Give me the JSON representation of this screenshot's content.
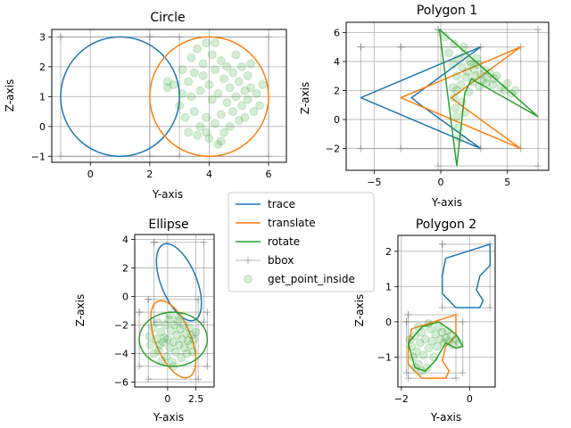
{
  "colors": {
    "trace": "#1f77b4",
    "translate": "#ff7f0e",
    "rotate": "#2ca02c",
    "bbox": "#7f7f7f",
    "points": "#2ca02c"
  },
  "legend": {
    "placement": "center",
    "entries": [
      {
        "label": "trace",
        "kind": "line",
        "color": "#1f77b4"
      },
      {
        "label": "translate",
        "kind": "line",
        "color": "#ff7f0e"
      },
      {
        "label": "rotate",
        "kind": "line",
        "color": "#2ca02c"
      },
      {
        "label": "bbox",
        "kind": "line-marker",
        "color": "#7f7f7f"
      },
      {
        "label": "get_point_inside",
        "kind": "point",
        "color": "#2ca02c"
      }
    ]
  },
  "chart_data": [
    {
      "type": "line",
      "title": "Circle",
      "xlabel": "Y-axis",
      "ylabel": "Z-axis",
      "xlim": [
        -1.3,
        6.6
      ],
      "ylim": [
        -1.2,
        3.25
      ],
      "xticks": [
        0,
        2,
        4,
        6
      ],
      "yticks": [
        -1,
        0,
        1,
        2,
        3
      ],
      "grid": true,
      "series": [
        {
          "name": "trace",
          "shape": "circle",
          "cx": 1,
          "cy": 1,
          "r": 2
        },
        {
          "name": "translate",
          "shape": "circle",
          "cx": 4,
          "cy": 1,
          "r": 2
        }
      ],
      "bbox": [
        [
          [
            -1,
            3
          ],
          [
            3,
            3
          ],
          [
            3,
            -1
          ],
          [
            -1,
            -1
          ],
          [
            -1,
            3
          ]
        ],
        [
          [
            2,
            3
          ],
          [
            6,
            3
          ],
          [
            6,
            -1
          ],
          [
            2,
            -1
          ],
          [
            2,
            3
          ]
        ]
      ],
      "points": [
        [
          2.8,
          1.4
        ],
        [
          3.0,
          0.7
        ],
        [
          3.1,
          1.9
        ],
        [
          3.2,
          0.3
        ],
        [
          3.3,
          1.5
        ],
        [
          3.3,
          -0.2
        ],
        [
          3.4,
          2.3
        ],
        [
          3.4,
          1.0
        ],
        [
          3.5,
          0.5
        ],
        [
          3.5,
          1.8
        ],
        [
          3.6,
          -0.3
        ],
        [
          3.6,
          2.6
        ],
        [
          3.7,
          1.2
        ],
        [
          3.7,
          0.0
        ],
        [
          3.8,
          1.7
        ],
        [
          3.8,
          2.1
        ],
        [
          3.9,
          0.3
        ],
        [
          3.9,
          2.8
        ],
        [
          4.0,
          1.4
        ],
        [
          4.0,
          -0.4
        ],
        [
          4.1,
          0.9
        ],
        [
          4.1,
          2.4
        ],
        [
          4.2,
          0.1
        ],
        [
          4.2,
          1.9
        ],
        [
          4.3,
          -0.6
        ],
        [
          4.3,
          1.1
        ],
        [
          4.4,
          2.2
        ],
        [
          4.4,
          0.4
        ],
        [
          4.5,
          1.6
        ],
        [
          4.5,
          -0.2
        ],
        [
          4.6,
          0.8
        ],
        [
          4.6,
          2.0
        ],
        [
          4.7,
          1.3
        ],
        [
          4.7,
          0.0
        ],
        [
          4.8,
          1.8
        ],
        [
          4.8,
          0.5
        ],
        [
          4.9,
          2.4
        ],
        [
          4.9,
          1.0
        ],
        [
          5.0,
          0.2
        ],
        [
          5.0,
          1.5
        ],
        [
          5.1,
          0.7
        ],
        [
          5.1,
          2.0
        ],
        [
          5.2,
          1.2
        ],
        [
          5.2,
          0.3
        ],
        [
          5.3,
          1.7
        ],
        [
          5.3,
          0.9
        ],
        [
          5.4,
          2.1
        ],
        [
          5.4,
          1.3
        ],
        [
          5.5,
          0.5
        ],
        [
          5.6,
          1.1
        ],
        [
          5.7,
          0.7
        ],
        [
          5.8,
          1.4
        ],
        [
          2.6,
          1.5
        ],
        [
          2.6,
          1.3
        ],
        [
          3.1,
          1.1
        ],
        [
          3.9,
          -0.2
        ],
        [
          4.4,
          -0.5
        ],
        [
          4.2,
          2.8
        ]
      ]
    },
    {
      "type": "line",
      "title": "Polygon 1",
      "xlabel": "Y-axis",
      "ylabel": "Z-axis",
      "xlim": [
        -7.1,
        8.1
      ],
      "ylim": [
        -3.5,
        6.7
      ],
      "xticks": [
        -5,
        0,
        5
      ],
      "yticks": [
        -2,
        0,
        2,
        4,
        6
      ],
      "grid": true,
      "series": [
        {
          "name": "trace",
          "shape": "polygon",
          "points": [
            [
              -6,
              1.5
            ],
            [
              3,
              5
            ],
            [
              -2.2,
              1.5
            ],
            [
              -1.5,
              1
            ],
            [
              3,
              -2
            ]
          ]
        },
        {
          "name": "translate",
          "shape": "polygon",
          "points": [
            [
              -3,
              1.5
            ],
            [
              6,
              5
            ],
            [
              0.8,
              1.5
            ],
            [
              1.5,
              1
            ],
            [
              6,
              -2
            ]
          ]
        },
        {
          "name": "rotate",
          "shape": "polygon",
          "points": [
            [
              -0.1,
              6.2
            ],
            [
              7.3,
              0.2
            ],
            [
              2.3,
              2.8
            ],
            [
              1.8,
              1.8
            ],
            [
              1.2,
              -3.2
            ]
          ]
        }
      ],
      "bbox": [
        [
          [
            -6,
            5
          ],
          [
            3,
            5
          ],
          [
            3,
            -2
          ],
          [
            -6,
            -2
          ],
          [
            -6,
            5
          ]
        ],
        [
          [
            -3,
            5
          ],
          [
            6,
            5
          ],
          [
            6,
            -2
          ],
          [
            -3,
            -2
          ],
          [
            -3,
            5
          ]
        ],
        [
          [
            -0.2,
            6.2
          ],
          [
            7.3,
            6.2
          ],
          [
            7.3,
            -3.2
          ],
          [
            -0.2,
            -3.2
          ],
          [
            -0.2,
            6.2
          ]
        ]
      ],
      "points": [
        [
          0.3,
          5.7
        ],
        [
          0.6,
          4.6
        ],
        [
          0.9,
          3.8
        ],
        [
          1.0,
          5.2
        ],
        [
          1.2,
          3.0
        ],
        [
          1.3,
          4.2
        ],
        [
          1.5,
          2.4
        ],
        [
          1.6,
          3.6
        ],
        [
          1.8,
          4.5
        ],
        [
          1.9,
          2.9
        ],
        [
          2.0,
          3.3
        ],
        [
          2.1,
          1.9
        ],
        [
          2.2,
          4.0
        ],
        [
          2.4,
          2.6
        ],
        [
          2.5,
          3.5
        ],
        [
          2.6,
          3.0
        ],
        [
          2.8,
          3.8
        ],
        [
          2.9,
          2.3
        ],
        [
          3.0,
          3.1
        ],
        [
          3.1,
          2.7
        ],
        [
          3.3,
          3.4
        ],
        [
          3.4,
          2.5
        ],
        [
          3.5,
          2.9
        ],
        [
          3.7,
          3.2
        ],
        [
          3.9,
          2.4
        ],
        [
          4.0,
          2.8
        ],
        [
          4.2,
          3.0
        ],
        [
          4.5,
          2.2
        ],
        [
          4.8,
          2.0
        ],
        [
          5.0,
          2.5
        ],
        [
          5.3,
          1.8
        ],
        [
          5.6,
          2.0
        ],
        [
          1.0,
          1.5
        ],
        [
          1.1,
          0.8
        ],
        [
          1.2,
          0.2
        ],
        [
          1.3,
          -0.6
        ],
        [
          1.4,
          -1.3
        ],
        [
          1.2,
          2.0
        ],
        [
          0.9,
          2.2
        ],
        [
          1.6,
          1.2
        ],
        [
          1.8,
          0.5
        ],
        [
          2.3,
          3.8
        ],
        [
          1.7,
          5.0
        ],
        [
          2.7,
          4.2
        ]
      ]
    },
    {
      "type": "line",
      "title": "Ellipse",
      "xlabel": "Y-axis",
      "ylabel": "Z-axis",
      "xlim": [
        -2.9,
        4.1
      ],
      "ylim": [
        -6.35,
        4.35
      ],
      "xticks": [
        0.0,
        2.5
      ],
      "yticks": [
        -6,
        -4,
        -2,
        0,
        2,
        4
      ],
      "grid": true,
      "series": [
        {
          "name": "trace",
          "shape": "ellipse",
          "cx": 1.0,
          "cy": 1.0,
          "rx": 1.5,
          "ry": 3.0,
          "angle_deg": 30
        },
        {
          "name": "translate",
          "shape": "ellipse",
          "cx": 0.5,
          "cy": -3.0,
          "rx": 1.5,
          "ry": 3.0,
          "angle_deg": 30
        },
        {
          "name": "rotate",
          "shape": "ellipse",
          "cx": 0.5,
          "cy": -3.0,
          "rx": 3.0,
          "ry": 1.9,
          "angle_deg": 0
        }
      ],
      "bbox": [
        [
          [
            -1.2,
            3.8
          ],
          [
            3.2,
            3.8
          ],
          [
            3.2,
            -1.8
          ],
          [
            -1.2,
            -1.8
          ],
          [
            -1.2,
            3.8
          ]
        ],
        [
          [
            -1.7,
            -0.2
          ],
          [
            2.7,
            -0.2
          ],
          [
            2.7,
            -5.8
          ],
          [
            -1.7,
            -5.8
          ],
          [
            -1.7,
            -0.2
          ]
        ],
        [
          [
            -2.5,
            -1.1
          ],
          [
            3.5,
            -1.1
          ],
          [
            3.5,
            -4.9
          ],
          [
            -2.5,
            -4.9
          ],
          [
            -2.5,
            -1.1
          ]
        ]
      ],
      "points": [
        [
          -1.6,
          -2.8
        ],
        [
          -1.5,
          -3.4
        ],
        [
          -1.3,
          -2.2
        ],
        [
          -1.2,
          -4.0
        ],
        [
          -1.0,
          -3.0
        ],
        [
          -0.9,
          -1.8
        ],
        [
          -0.8,
          -3.8
        ],
        [
          -0.6,
          -2.5
        ],
        [
          -0.5,
          -4.5
        ],
        [
          -0.4,
          -3.2
        ],
        [
          -0.2,
          -2.0
        ],
        [
          -0.1,
          -4.2
        ],
        [
          0.0,
          -3.0
        ],
        [
          0.1,
          -1.6
        ],
        [
          0.2,
          -3.6
        ],
        [
          0.3,
          -2.4
        ],
        [
          0.4,
          -4.6
        ],
        [
          0.5,
          -3.2
        ],
        [
          0.6,
          -2.0
        ],
        [
          0.7,
          -3.9
        ],
        [
          0.8,
          -2.7
        ],
        [
          0.9,
          -1.7
        ],
        [
          1.0,
          -3.4
        ],
        [
          1.1,
          -2.3
        ],
        [
          1.2,
          -4.3
        ],
        [
          1.3,
          -3.0
        ],
        [
          1.4,
          -2.0
        ],
        [
          1.5,
          -3.6
        ],
        [
          1.6,
          -2.6
        ],
        [
          1.7,
          -4.0
        ],
        [
          1.8,
          -3.1
        ],
        [
          1.9,
          -2.2
        ],
        [
          2.0,
          -3.4
        ],
        [
          2.1,
          -2.7
        ],
        [
          2.2,
          -3.9
        ],
        [
          2.3,
          -3.0
        ],
        [
          2.5,
          -2.5
        ],
        [
          -0.3,
          -2.9
        ],
        [
          0.2,
          -1.3
        ],
        [
          0.5,
          -4.9
        ],
        [
          -0.7,
          -3.4
        ],
        [
          1.0,
          -1.4
        ]
      ]
    },
    {
      "type": "line",
      "title": "Polygon 2",
      "xlabel": "Y-axis",
      "ylabel": "Z-axis",
      "xlim": [
        -2.1,
        0.75
      ],
      "ylim": [
        -1.85,
        2.45
      ],
      "xticks": [
        -2,
        0
      ],
      "yticks": [
        -1,
        0,
        1,
        2
      ],
      "grid": true,
      "series": [
        {
          "name": "trace",
          "shape": "polygon",
          "points": [
            [
              -0.7,
              1.8
            ],
            [
              0.6,
              2.2
            ],
            [
              0.6,
              1.6
            ],
            [
              0.3,
              1.3
            ],
            [
              0.2,
              0.9
            ],
            [
              0.4,
              0.6
            ],
            [
              0.3,
              0.4
            ],
            [
              -0.4,
              0.4
            ],
            [
              -0.8,
              0.8
            ],
            [
              -0.8,
              1.3
            ]
          ]
        },
        {
          "name": "translate",
          "shape": "polygon",
          "points": [
            [
              -1.7,
              -0.2
            ],
            [
              -0.4,
              0.2
            ],
            [
              -0.4,
              -0.4
            ],
            [
              -0.7,
              -0.7
            ],
            [
              -0.8,
              -1.1
            ],
            [
              -0.6,
              -1.4
            ],
            [
              -0.7,
              -1.6
            ],
            [
              -1.4,
              -1.6
            ],
            [
              -1.8,
              -1.2
            ],
            [
              -1.8,
              -0.7
            ]
          ]
        },
        {
          "name": "rotate",
          "shape": "polygon",
          "points": [
            [
              -1.8,
              -0.6
            ],
            [
              -1.4,
              -0.15
            ],
            [
              -0.9,
              0.0
            ],
            [
              -0.4,
              -0.35
            ],
            [
              -0.2,
              -0.7
            ],
            [
              -0.4,
              -0.75
            ],
            [
              -0.7,
              -0.6
            ],
            [
              -1.0,
              -1.1
            ],
            [
              -1.3,
              -1.4
            ],
            [
              -1.6,
              -1.3
            ]
          ]
        }
      ],
      "bbox": [
        [
          [
            -0.8,
            2.2
          ],
          [
            0.6,
            2.2
          ],
          [
            0.6,
            0.4
          ],
          [
            -0.8,
            0.4
          ],
          [
            -0.8,
            2.2
          ]
        ],
        [
          [
            -1.8,
            0.2
          ],
          [
            -0.4,
            0.2
          ],
          [
            -0.4,
            -1.6
          ],
          [
            -1.8,
            -1.6
          ],
          [
            -1.8,
            0.2
          ]
        ],
        [
          [
            -1.85,
            0.0
          ],
          [
            -0.2,
            0.0
          ],
          [
            -0.2,
            -1.45
          ],
          [
            -1.85,
            -1.45
          ],
          [
            -1.85,
            0.0
          ]
        ]
      ],
      "points": [
        [
          -1.7,
          -0.7
        ],
        [
          -1.65,
          -1.0
        ],
        [
          -1.6,
          -0.4
        ],
        [
          -1.55,
          -0.85
        ],
        [
          -1.5,
          -1.2
        ],
        [
          -1.45,
          -0.6
        ],
        [
          -1.4,
          -0.3
        ],
        [
          -1.35,
          -0.95
        ],
        [
          -1.3,
          -0.5
        ],
        [
          -1.25,
          -1.3
        ],
        [
          -1.2,
          -0.75
        ],
        [
          -1.15,
          -0.2
        ],
        [
          -1.1,
          -0.55
        ],
        [
          -1.05,
          -1.0
        ],
        [
          -1.0,
          -0.35
        ],
        [
          -0.95,
          -0.7
        ],
        [
          -0.9,
          -0.15
        ],
        [
          -0.85,
          -0.5
        ],
        [
          -0.8,
          -0.3
        ],
        [
          -0.75,
          -0.6
        ],
        [
          -0.7,
          -0.45
        ],
        [
          -0.65,
          -0.25
        ],
        [
          -0.6,
          -0.55
        ],
        [
          -0.55,
          -0.4
        ],
        [
          -0.5,
          -0.65
        ],
        [
          -0.4,
          -0.5
        ],
        [
          -0.3,
          -0.6
        ],
        [
          -1.6,
          -1.3
        ],
        [
          -1.4,
          -1.4
        ],
        [
          -1.75,
          -0.5
        ],
        [
          -1.2,
          -0.05
        ],
        [
          -1.5,
          -0.15
        ]
      ]
    }
  ]
}
